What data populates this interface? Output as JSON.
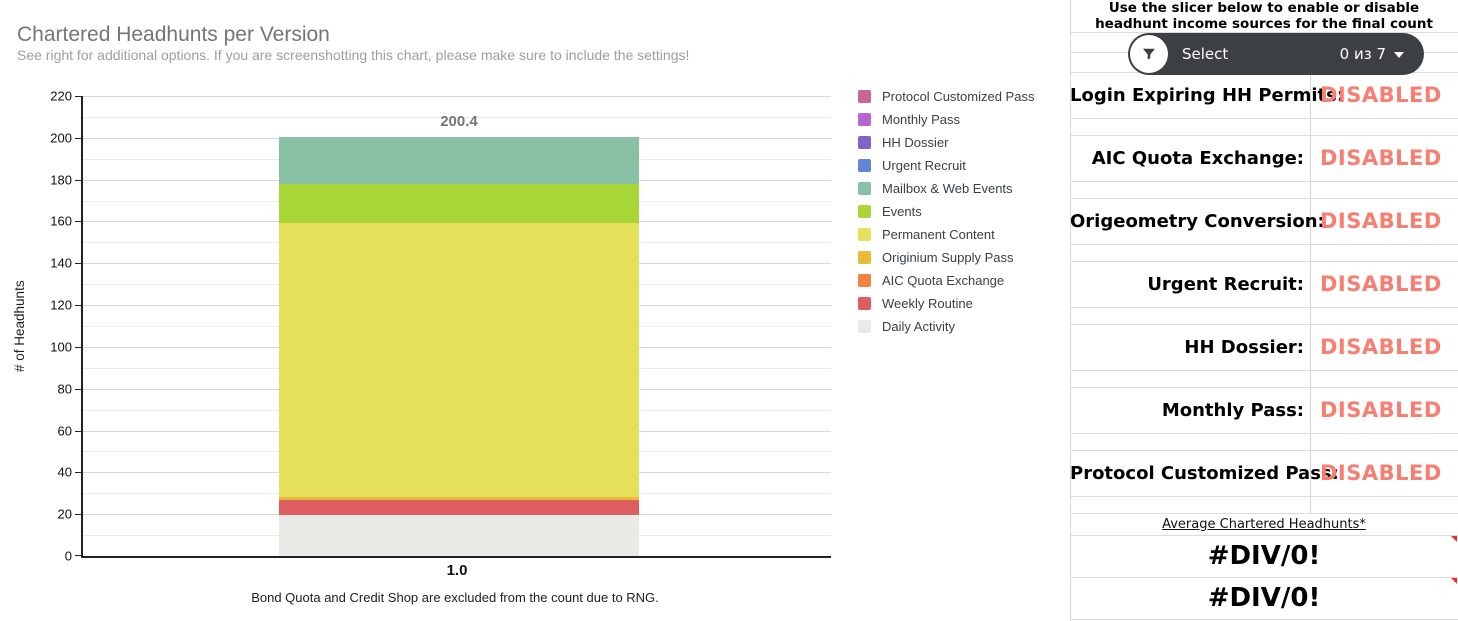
{
  "chart": {
    "title": "Chartered Headhunts per Version",
    "subtitle": "See right for additional options. If you are screenshotting this chart, please make sure to include the settings!",
    "ylabel": "# of Headhunts",
    "x_tick": "1.0",
    "total_label": "200.4",
    "caption": "Bond Quota and Credit Shop are excluded from the count due to RNG."
  },
  "chart_data": {
    "type": "bar",
    "stacked": true,
    "title": "Chartered Headhunts per Version",
    "subtitle": "See right for additional options. If you are screenshotting this chart, please make sure to include the settings!",
    "xlabel": "",
    "ylabel": "# of Headhunts",
    "categories": [
      "1.0"
    ],
    "ylim": [
      0,
      220
    ],
    "ytick_step": 20,
    "minor_grid_step": 10,
    "grid": true,
    "legend_position": "right",
    "bar_total": 200.4,
    "series": [
      {
        "name": "Protocol Customized Pass",
        "color": "#c9688f",
        "values": [
          0
        ]
      },
      {
        "name": "Monthly Pass",
        "color": "#b866cf",
        "values": [
          0
        ]
      },
      {
        "name": "HH Dossier",
        "color": "#8065c9",
        "values": [
          0
        ]
      },
      {
        "name": "Urgent Recruit",
        "color": "#6186d3",
        "values": [
          0
        ]
      },
      {
        "name": "Mailbox & Web Events",
        "color": "#88c0a6",
        "values": [
          22.5
        ]
      },
      {
        "name": "Events",
        "color": "#a8d636",
        "values": [
          18.5
        ]
      },
      {
        "name": "Permanent Content",
        "color": "#e5e05c",
        "values": [
          131.0
        ]
      },
      {
        "name": "Originium Supply Pass",
        "color": "#eaba3b",
        "values": [
          1.8
        ]
      },
      {
        "name": "AIC Quota Exchange",
        "color": "#ef8340",
        "values": [
          0
        ]
      },
      {
        "name": "Weekly Routine",
        "color": "#dd5e5e",
        "values": [
          7.0
        ]
      },
      {
        "name": "Daily Activity",
        "color": "#e9e9e5",
        "values": [
          19.6
        ]
      }
    ],
    "stack_order_bottom_to_top": [
      "Daily Activity",
      "Weekly Routine",
      "AIC Quota Exchange",
      "Originium Supply Pass",
      "Permanent Content",
      "Events",
      "Mailbox & Web Events",
      "Urgent Recruit",
      "HH Dossier",
      "Monthly Pass",
      "Protocol Customized Pass"
    ],
    "caption": "Bond Quota and Credit Shop are excluded from the count due to RNG."
  },
  "panel": {
    "header": "Use the slicer below to enable or disable headhunt income sources for the final count displayed on the chart.",
    "slicer": {
      "select_label": "Select",
      "count_label": "0 из 7",
      "bg_color": "#3c4043",
      "filter_icon": "funnel-icon",
      "caret_icon": "chevron-down-icon"
    },
    "rows": [
      {
        "label": "Login Expiring HH Permits:",
        "status": "DISABLED"
      },
      {
        "label": "AIC Quota Exchange:",
        "status": "DISABLED"
      },
      {
        "label": "Origeometry Conversion:",
        "status": "DISABLED"
      },
      {
        "label": "Urgent Recruit:",
        "status": "DISABLED"
      },
      {
        "label": "HH Dossier:",
        "status": "DISABLED"
      },
      {
        "label": "Monthly Pass:",
        "status": "DISABLED"
      },
      {
        "label": "Protocol Customized Pass:",
        "status": "DISABLED"
      }
    ],
    "status_color": "#f87e71",
    "average_label": "Average Chartered Headhunts*",
    "average_values": [
      "#DIV/0!",
      "#DIV/0!"
    ],
    "error_marker_color": "#e52f2f"
  }
}
